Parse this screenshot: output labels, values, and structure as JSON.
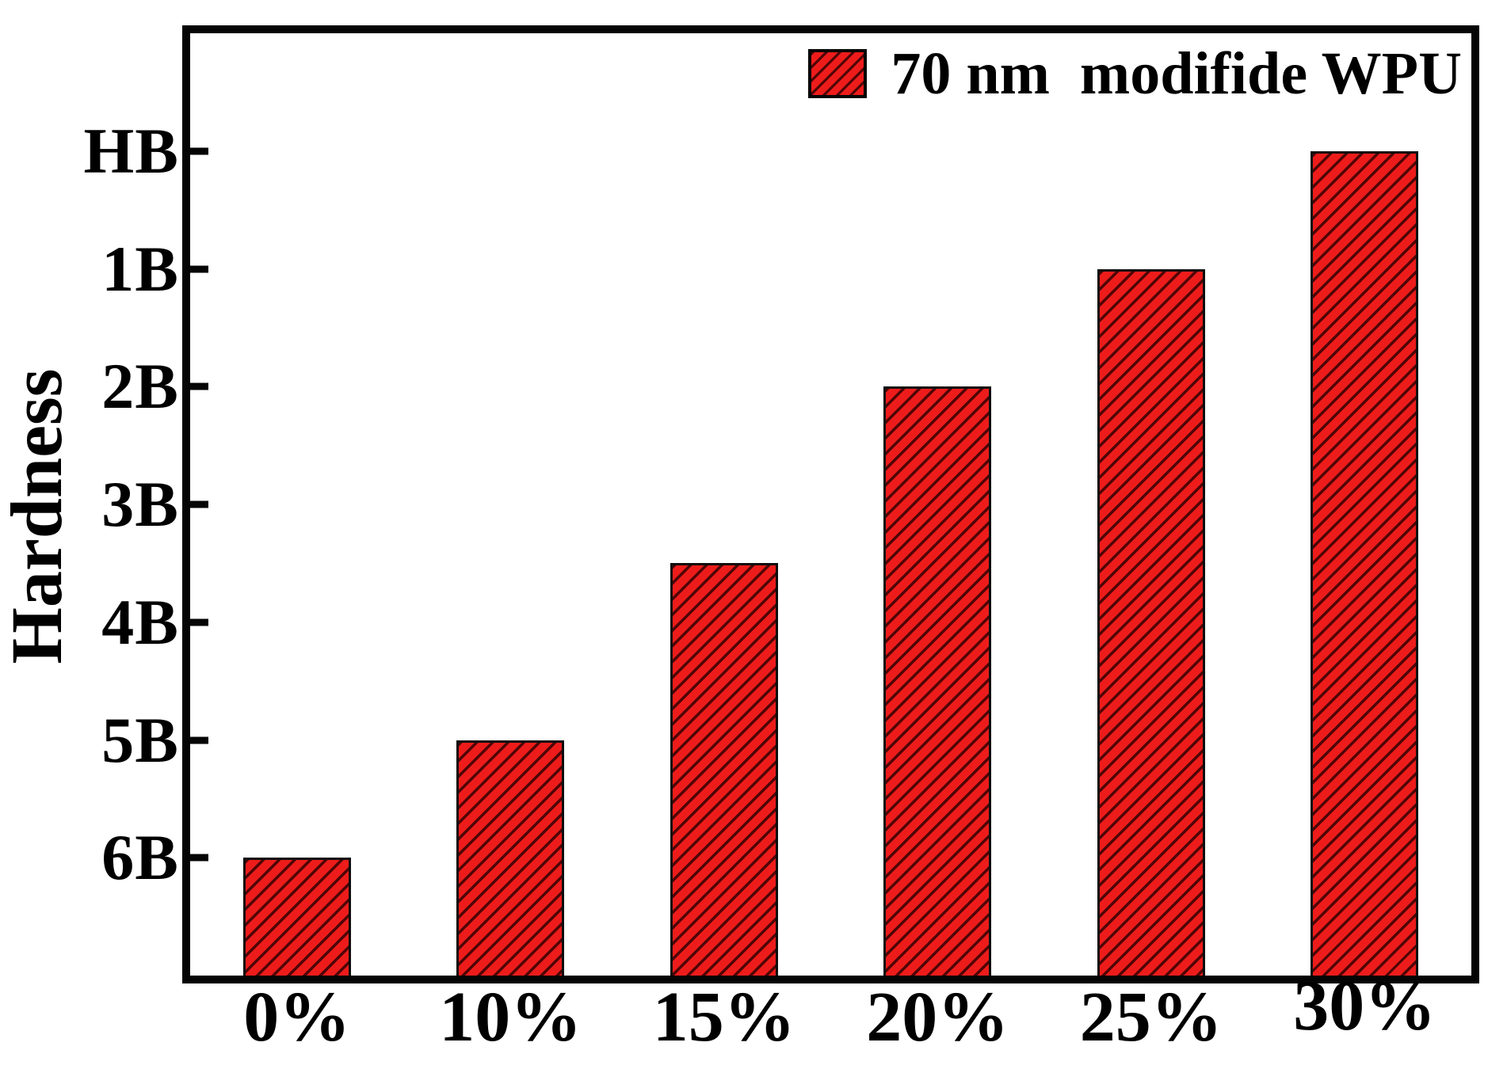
{
  "figure": {
    "background": "#ffffff"
  },
  "chart_data": {
    "type": "bar",
    "title": "",
    "xlabel": "",
    "ylabel": "Hardness",
    "categories": [
      "0%",
      "10%",
      "15%",
      "20%",
      "25%",
      "30%"
    ],
    "series": [
      {
        "name": "70 nm  modifide WPU",
        "hardness_values": [
          "6B",
          "5B",
          "between 4B and 3B",
          "2B",
          "1B",
          "HB"
        ],
        "values_units": [
          1,
          2,
          3.5,
          5,
          6,
          7
        ]
      }
    ],
    "yticks": [
      {
        "label": "HB",
        "unit": 7
      },
      {
        "label": "1B",
        "unit": 6
      },
      {
        "label": "2B",
        "unit": 5
      },
      {
        "label": "3B",
        "unit": 4
      },
      {
        "label": "4B",
        "unit": 3
      },
      {
        "label": "5B",
        "unit": 2
      },
      {
        "label": "6B",
        "unit": 1
      }
    ],
    "ylim_units": [
      0,
      8
    ],
    "unit_note": "1 unit = one pencil-hardness grade; baseline (axis bottom) is 1 grade below 6B",
    "grid": false,
    "legend_position": "top-right-inside",
    "legend": [
      {
        "label": "70 nm  modifide WPU",
        "swatch": "red-diagonal-hatch"
      }
    ],
    "colors": {
      "bar_fill": "#ed1c1b",
      "bar_hatch": "#2d0000",
      "bar_border": "#0e0e0e",
      "axis": "#050505",
      "text": "#000000",
      "background": "#ffffff"
    }
  }
}
